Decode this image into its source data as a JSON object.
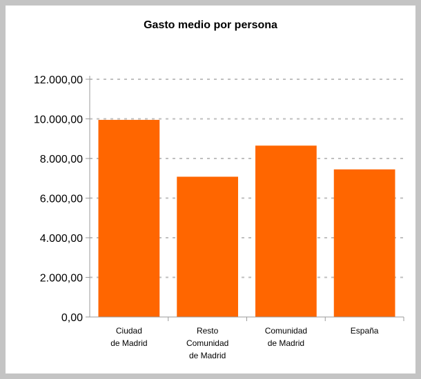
{
  "chart_data": {
    "type": "bar",
    "title": "Gasto medio por persona",
    "categories": [
      [
        "Ciudad",
        "de Madrid"
      ],
      [
        "Resto",
        "Comunidad",
        "de Madrid"
      ],
      [
        "Comunidad",
        "de Madrid"
      ],
      [
        "España"
      ]
    ],
    "values": [
      9950,
      7080,
      8650,
      7450
    ],
    "ylim": [
      0,
      12000
    ],
    "yticks": [
      0,
      2000,
      4000,
      6000,
      8000,
      10000,
      12000
    ],
    "ytick_labels": [
      "0,00",
      "2.000,00",
      "4.000,00",
      "6.000,00",
      "8.000,00",
      "10.000,00",
      "12.000,00"
    ],
    "grid": true,
    "legend": "none",
    "bar_color": "#ff6600",
    "grid_color": "#bfbfbf"
  }
}
